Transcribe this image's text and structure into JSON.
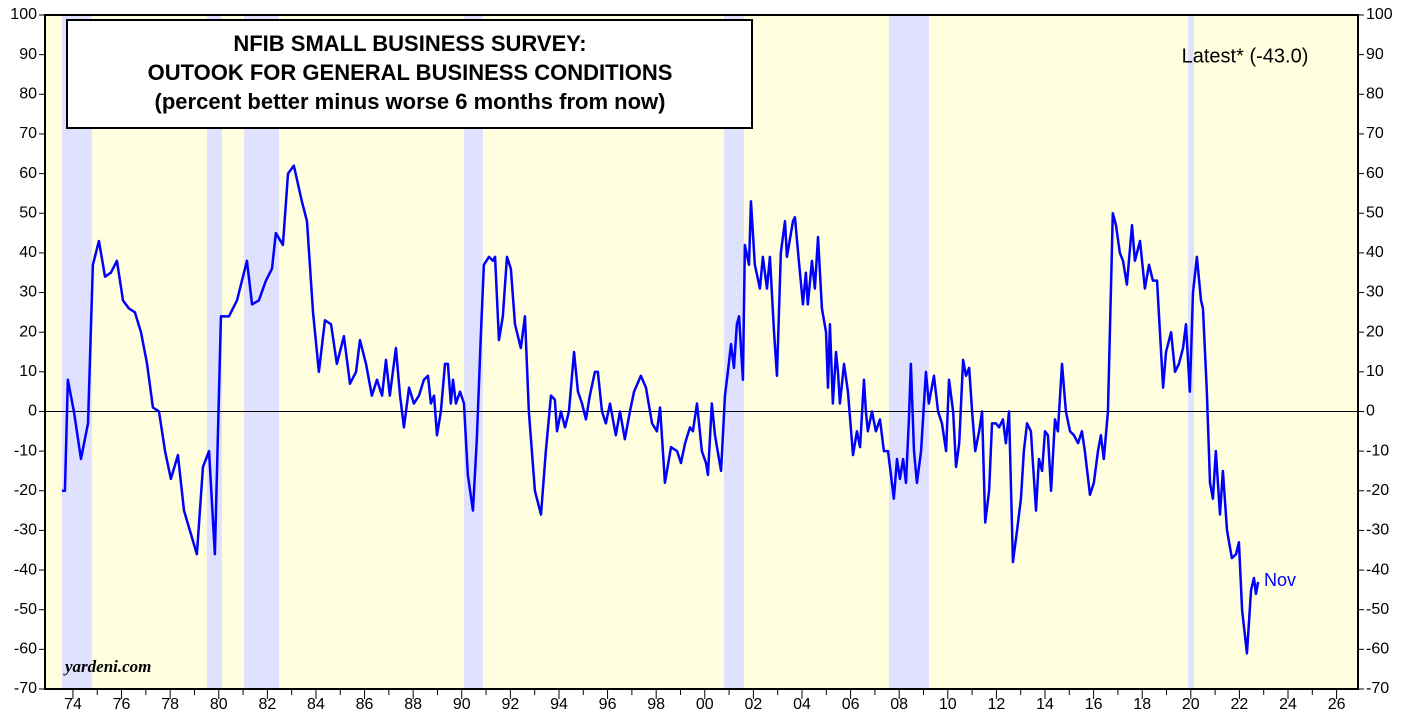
{
  "chart_data": {
    "type": "line",
    "title": [
      "NFIB SMALL BUSINESS SURVEY:",
      "OUTOOK FOR GENERAL BUSINESS CONDITIONS",
      "(percent better minus worse 6 months from now)"
    ],
    "annotations": {
      "latest": "Latest* (-43.0)",
      "last_label": "Nov",
      "source": "yardeni.com"
    },
    "color": "#0000ff",
    "background": "#ffffe0",
    "recession_color": "#e0e0ff",
    "recessions": [
      [
        1973.55,
        1974.78
      ],
      [
        1979.51,
        1980.13
      ],
      [
        1981.04,
        1982.48
      ],
      [
        1990.09,
        1990.87
      ],
      [
        2000.79,
        2001.61
      ],
      [
        2007.58,
        2009.22
      ],
      [
        2019.88,
        2020.13
      ]
    ],
    "xlim": [
      1972.85,
      2026.88
    ],
    "xticks": [
      {
        "value": 1974,
        "label": "74"
      },
      {
        "value": 1976,
        "label": "76"
      },
      {
        "value": 1978,
        "label": "78"
      },
      {
        "value": 1980,
        "label": "80"
      },
      {
        "value": 1982,
        "label": "82"
      },
      {
        "value": 1984,
        "label": "84"
      },
      {
        "value": 1986,
        "label": "86"
      },
      {
        "value": 1988,
        "label": "88"
      },
      {
        "value": 1990,
        "label": "90"
      },
      {
        "value": 1992,
        "label": "92"
      },
      {
        "value": 1994,
        "label": "94"
      },
      {
        "value": 1996,
        "label": "96"
      },
      {
        "value": 1998,
        "label": "98"
      },
      {
        "value": 2000,
        "label": "00"
      },
      {
        "value": 2002,
        "label": "02"
      },
      {
        "value": 2004,
        "label": "04"
      },
      {
        "value": 2006,
        "label": "06"
      },
      {
        "value": 2008,
        "label": "08"
      },
      {
        "value": 2010,
        "label": "10"
      },
      {
        "value": 2012,
        "label": "12"
      },
      {
        "value": 2014,
        "label": "14"
      },
      {
        "value": 2016,
        "label": "16"
      },
      {
        "value": 2018,
        "label": "18"
      },
      {
        "value": 2020,
        "label": "20"
      },
      {
        "value": 2022,
        "label": "22"
      },
      {
        "value": 2024,
        "label": "24"
      },
      {
        "value": 2026,
        "label": "26"
      }
    ],
    "ylim": [
      -70,
      100
    ],
    "yticks": [
      -70,
      -60,
      -50,
      -40,
      -30,
      -20,
      -10,
      0,
      10,
      20,
      30,
      40,
      50,
      60,
      70,
      80,
      90,
      100
    ],
    "y2lim": [
      -70,
      100
    ],
    "y2ticks": [
      -70,
      -60,
      -50,
      -40,
      -30,
      -20,
      -10,
      0,
      10,
      20,
      30,
      40,
      50,
      60,
      70,
      80,
      90,
      100
    ],
    "x": [
      1973.55,
      1973.67,
      1973.79,
      1974.04,
      1974.33,
      1974.62,
      1974.82,
      1975.07,
      1975.32,
      1975.56,
      1975.81,
      1976.06,
      1976.3,
      1976.55,
      1976.8,
      1977.05,
      1977.29,
      1977.54,
      1977.79,
      1978.03,
      1978.32,
      1978.57,
      1978.81,
      1979.1,
      1979.35,
      1979.6,
      1979.84,
      1980.09,
      1980.42,
      1980.75,
      1981.16,
      1981.37,
      1981.65,
      1981.94,
      1982.19,
      1982.35,
      1982.64,
      1982.85,
      1983.09,
      1983.42,
      1983.63,
      1983.88,
      1984.12,
      1984.37,
      1984.62,
      1984.86,
      1985.15,
      1985.4,
      1985.65,
      1985.81,
      1986.06,
      1986.3,
      1986.51,
      1986.72,
      1986.88,
      1987.04,
      1987.29,
      1987.46,
      1987.62,
      1987.83,
      1988.03,
      1988.24,
      1988.44,
      1988.61,
      1988.73,
      1988.86,
      1988.98,
      1989.14,
      1989.31,
      1989.43,
      1989.55,
      1989.64,
      1989.76,
      1989.93,
      1990.09,
      1990.25,
      1990.46,
      1990.62,
      1990.79,
      1990.91,
      1991.12,
      1991.28,
      1991.37,
      1991.53,
      1991.69,
      1991.86,
      1992.02,
      1992.19,
      1992.43,
      1992.6,
      1992.76,
      1993.01,
      1993.26,
      1993.46,
      1993.67,
      1993.83,
      1993.92,
      1994.08,
      1994.25,
      1994.41,
      1994.62,
      1994.78,
      1994.95,
      1995.11,
      1995.27,
      1995.48,
      1995.6,
      1995.77,
      1995.93,
      1996.1,
      1996.34,
      1996.51,
      1996.71,
      1996.92,
      1997.09,
      1997.37,
      1997.58,
      1997.83,
      1998.03,
      1998.16,
      1998.36,
      1998.61,
      1998.86,
      1999.02,
      1999.19,
      1999.39,
      1999.51,
      1999.68,
      1999.88,
      2000.05,
      2000.13,
      2000.29,
      2000.42,
      2000.67,
      2000.83,
      2000.95,
      2001.08,
      2001.2,
      2001.32,
      2001.41,
      2001.57,
      2001.65,
      2001.82,
      2001.9,
      2002.06,
      2002.27,
      2002.39,
      2002.56,
      2002.68,
      2002.85,
      2002.97,
      2003.13,
      2003.3,
      2003.38,
      2003.63,
      2003.71,
      2003.87,
      2004.04,
      2004.16,
      2004.24,
      2004.41,
      2004.53,
      2004.66,
      2004.82,
      2004.99,
      2005.07,
      2005.15,
      2005.27,
      2005.4,
      2005.48,
      2005.56,
      2005.73,
      2005.89,
      2006.1,
      2006.26,
      2006.39,
      2006.55,
      2006.63,
      2006.71,
      2006.88,
      2007.04,
      2007.21,
      2007.37,
      2007.54,
      2007.78,
      2007.91,
      2008.03,
      2008.16,
      2008.28,
      2008.4,
      2008.48,
      2008.61,
      2008.73,
      2008.9,
      2009.1,
      2009.22,
      2009.43,
      2009.6,
      2009.76,
      2009.93,
      2010.05,
      2010.22,
      2010.34,
      2010.47,
      2010.63,
      2010.75,
      2010.88,
      2011.0,
      2011.13,
      2011.29,
      2011.41,
      2011.54,
      2011.7,
      2011.82,
      2011.98,
      2012.11,
      2012.27,
      2012.39,
      2012.52,
      2012.68,
      2012.85,
      2013.01,
      2013.13,
      2013.26,
      2013.42,
      2013.63,
      2013.75,
      2013.88,
      2014.0,
      2014.12,
      2014.25,
      2014.41,
      2014.53,
      2014.7,
      2014.86,
      2015.03,
      2015.19,
      2015.36,
      2015.52,
      2015.64,
      2015.85,
      2016.01,
      2016.18,
      2016.3,
      2016.42,
      2016.59,
      2016.79,
      2016.92,
      2017.08,
      2017.21,
      2017.37,
      2017.58,
      2017.7,
      2017.91,
      2018.11,
      2018.28,
      2018.44,
      2018.61,
      2018.73,
      2018.86,
      2018.98,
      2019.19,
      2019.35,
      2019.51,
      2019.68,
      2019.8,
      2019.96,
      2020.09,
      2020.25,
      2020.42,
      2020.5,
      2020.66,
      2020.79,
      2020.91,
      2021.03,
      2021.2,
      2021.32,
      2021.49,
      2021.69,
      2021.86,
      2021.98,
      2022.11,
      2022.31,
      2022.48,
      2022.6,
      2022.68,
      2022.77
    ],
    "values": [
      -20,
      -20,
      8,
      0,
      -12,
      -3,
      37,
      43,
      34,
      35,
      38,
      28,
      26,
      25,
      20,
      12,
      1,
      0,
      -10,
      -17,
      -11,
      -25,
      -30,
      -36,
      -14,
      -10,
      -36,
      24,
      24,
      28,
      38,
      27,
      28,
      33,
      36,
      45,
      42,
      60,
      62,
      53,
      48,
      25,
      10,
      23,
      22,
      12,
      19,
      7,
      10,
      18,
      12,
      4,
      8,
      4,
      13,
      4,
      16,
      4,
      -4,
      6,
      2,
      4,
      8,
      9,
      2,
      4,
      -6,
      0,
      12,
      12,
      2,
      8,
      2,
      5,
      2,
      -16,
      -25,
      -7,
      20,
      37,
      39,
      38,
      39,
      18,
      24,
      39,
      36,
      22,
      16,
      24,
      0,
      -20,
      -26,
      -10,
      4,
      3,
      -5,
      0,
      -4,
      0,
      15,
      5,
      2,
      -2,
      4,
      10,
      10,
      0,
      -3,
      2,
      -6,
      0,
      -7,
      0,
      5,
      9,
      6,
      -3,
      -5,
      1,
      -18,
      -9,
      -10,
      -13,
      -8,
      -4,
      -5,
      2,
      -10,
      -13,
      -16,
      2,
      -6,
      -15,
      4,
      10,
      17,
      11,
      22,
      24,
      8,
      42,
      37,
      53,
      37,
      31,
      39,
      31,
      39,
      20,
      9,
      40,
      48,
      39,
      48,
      49,
      38,
      27,
      35,
      27,
      38,
      31,
      44,
      26,
      20,
      6,
      22,
      2,
      15,
      10,
      2,
      12,
      5,
      -11,
      -5,
      -9,
      8,
      0,
      -5,
      0,
      -5,
      -2,
      -10,
      -10,
      -22,
      -12,
      -17,
      -12,
      -18,
      -2,
      12,
      -10,
      -18,
      -10,
      10,
      2,
      9,
      0,
      -3,
      -10,
      8,
      0,
      -14,
      -8,
      13,
      9,
      11,
      0,
      -10,
      -5,
      0,
      -28,
      -20,
      -3,
      -3,
      -4,
      -2,
      -8,
      0,
      -38,
      -30,
      -22,
      -10,
      -3,
      -5,
      -25,
      -12,
      -15,
      -5,
      -6,
      -20,
      -2,
      -5,
      12,
      0,
      -5,
      -6,
      -8,
      -5,
      -10,
      -21,
      -18,
      -10,
      -6,
      -12,
      0,
      50,
      47,
      40,
      38,
      32,
      47,
      38,
      43,
      31,
      37,
      33,
      33,
      20,
      6,
      15,
      20,
      10,
      12,
      16,
      22,
      5,
      30,
      39,
      28,
      26,
      5,
      -18,
      -22,
      -10,
      -26,
      -15,
      -30,
      -37,
      -36,
      -33,
      -50,
      -61,
      -45,
      -42,
      -46,
      -43
    ]
  }
}
